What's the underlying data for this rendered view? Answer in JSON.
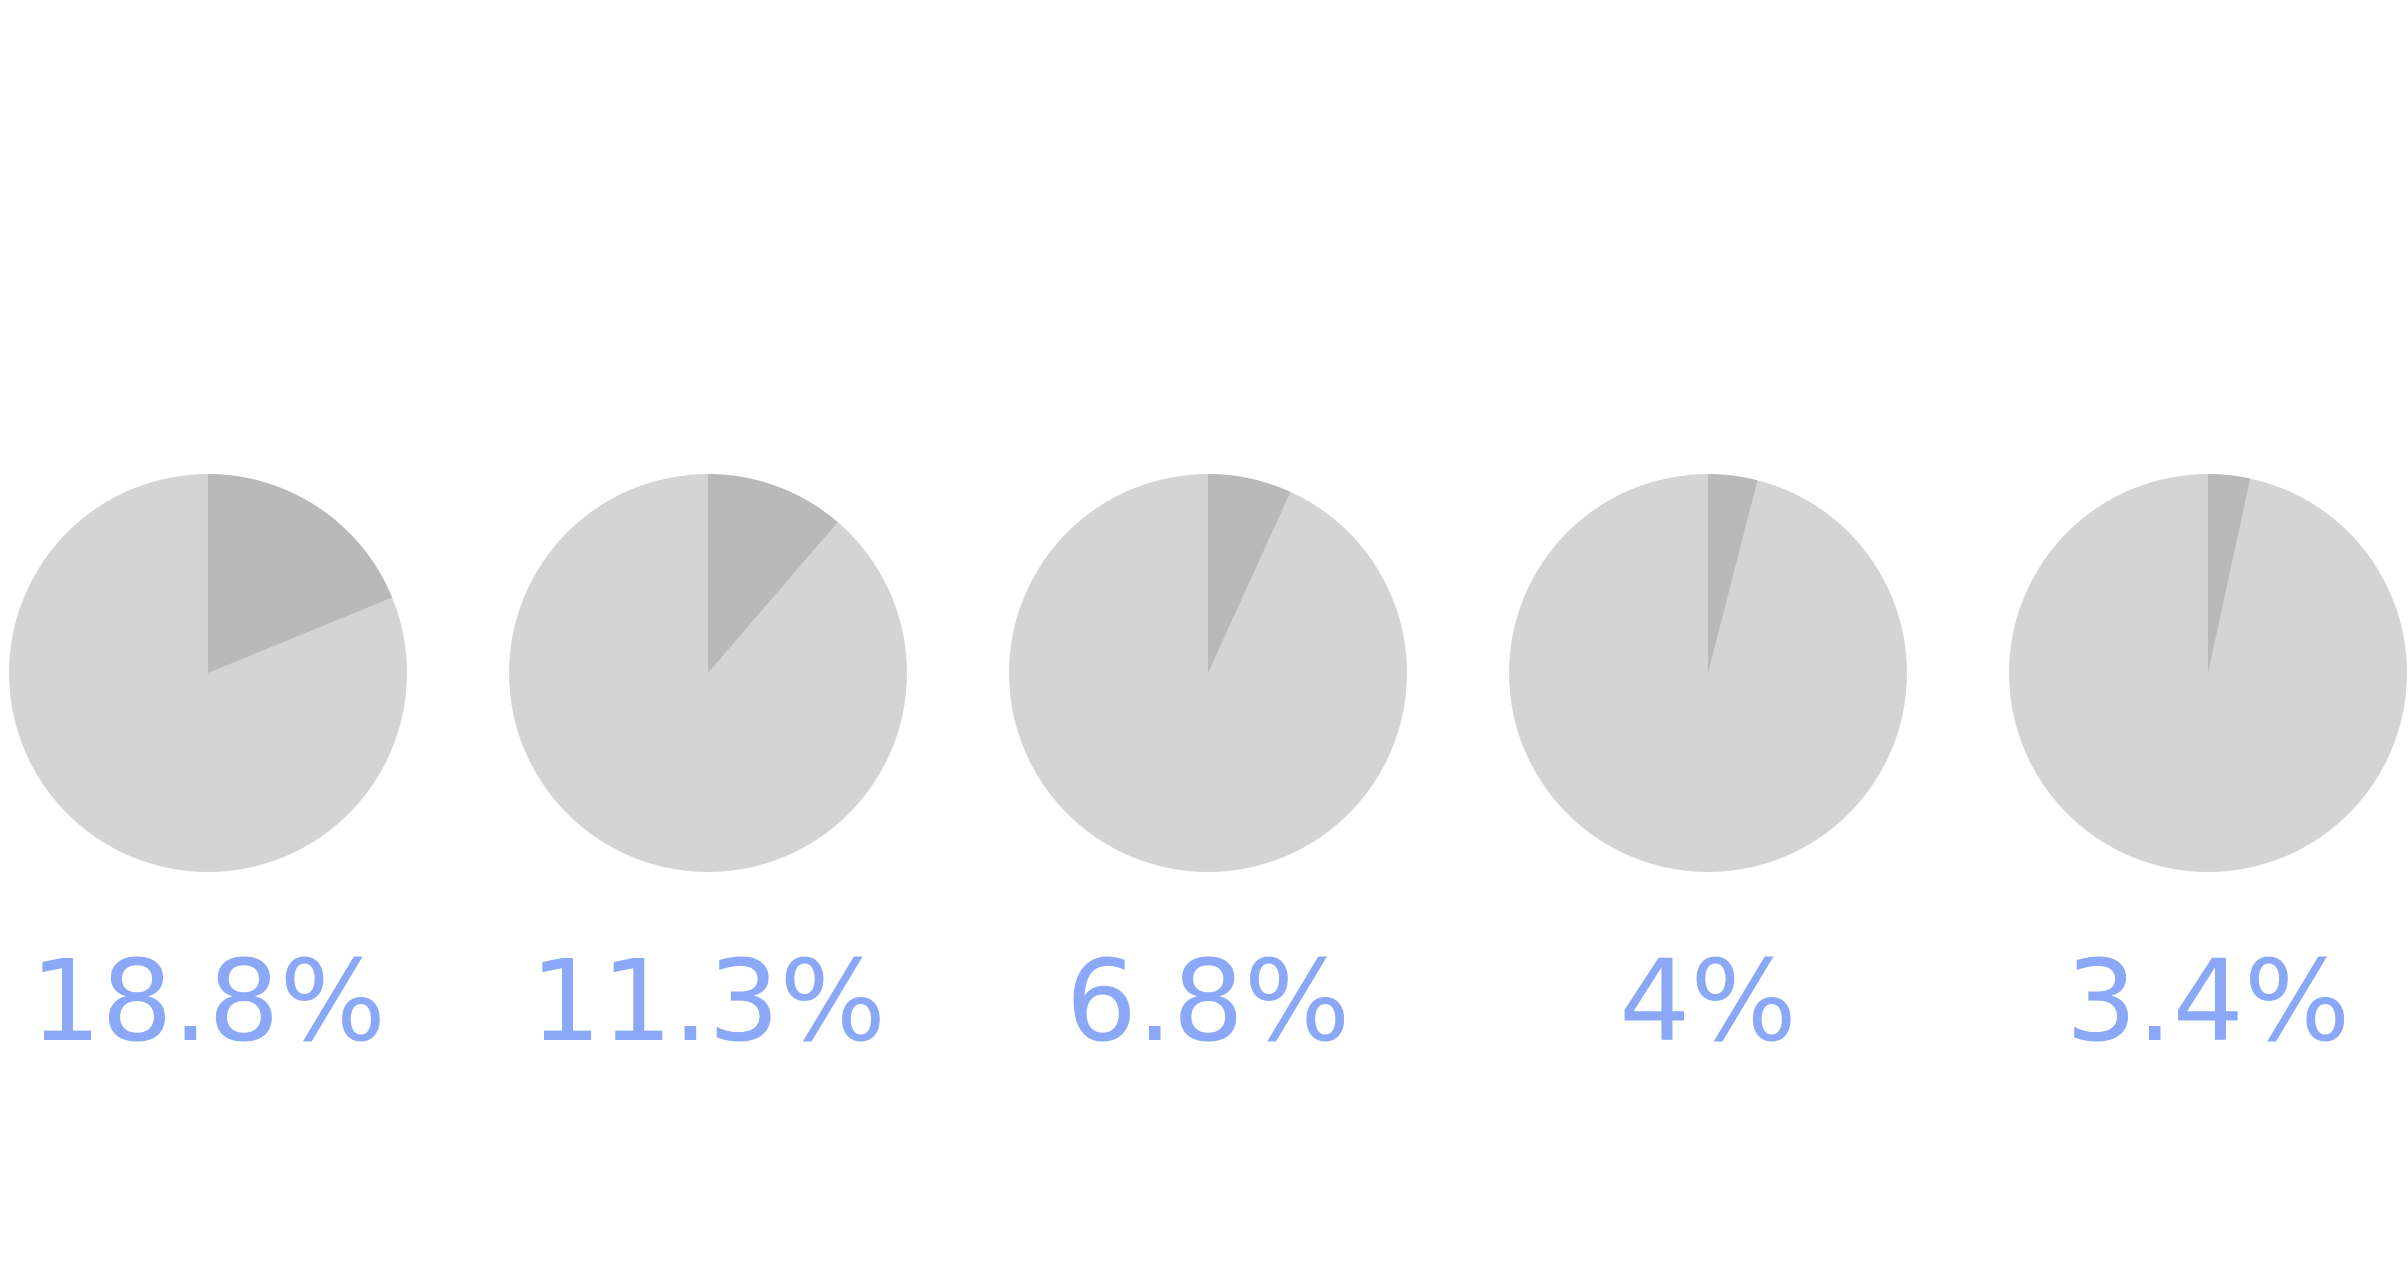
{
  "chart_data": {
    "type": "pie",
    "values": [
      18.8,
      11.3,
      6.8,
      4,
      3.4
    ],
    "value_labels": [
      "18.8%",
      "11.3%",
      "6.8%",
      "4%",
      "3.4%"
    ],
    "color": "#b9b9b9",
    "rest_color": "#d4d4d4",
    "label_color": "#8aa8f5"
  }
}
